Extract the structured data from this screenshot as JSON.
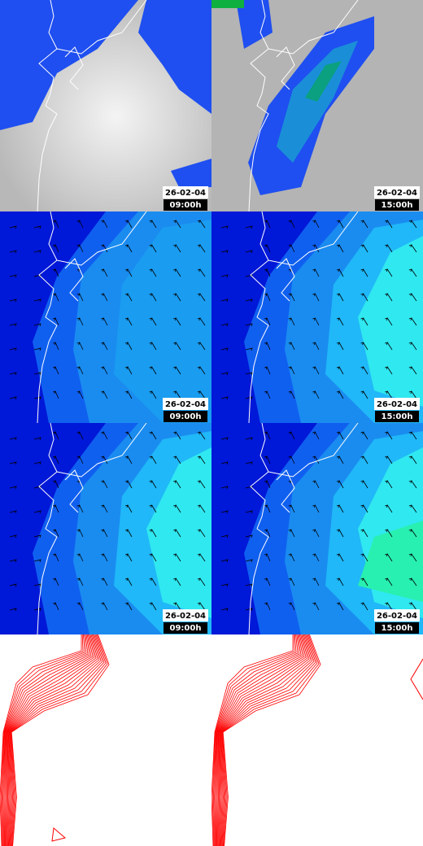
{
  "panels": [
    {
      "date": "26-02-04",
      "time": "09:00h"
    },
    {
      "date": "26-02-04",
      "time": "15:00h"
    },
    {
      "date": "26-02-04",
      "time": "09:00h"
    },
    {
      "date": "26-02-04",
      "time": "15:00h"
    },
    {
      "date": "26-02-04",
      "time": "09:00h"
    },
    {
      "date": "26-02-04",
      "time": "15:00h"
    }
  ]
}
